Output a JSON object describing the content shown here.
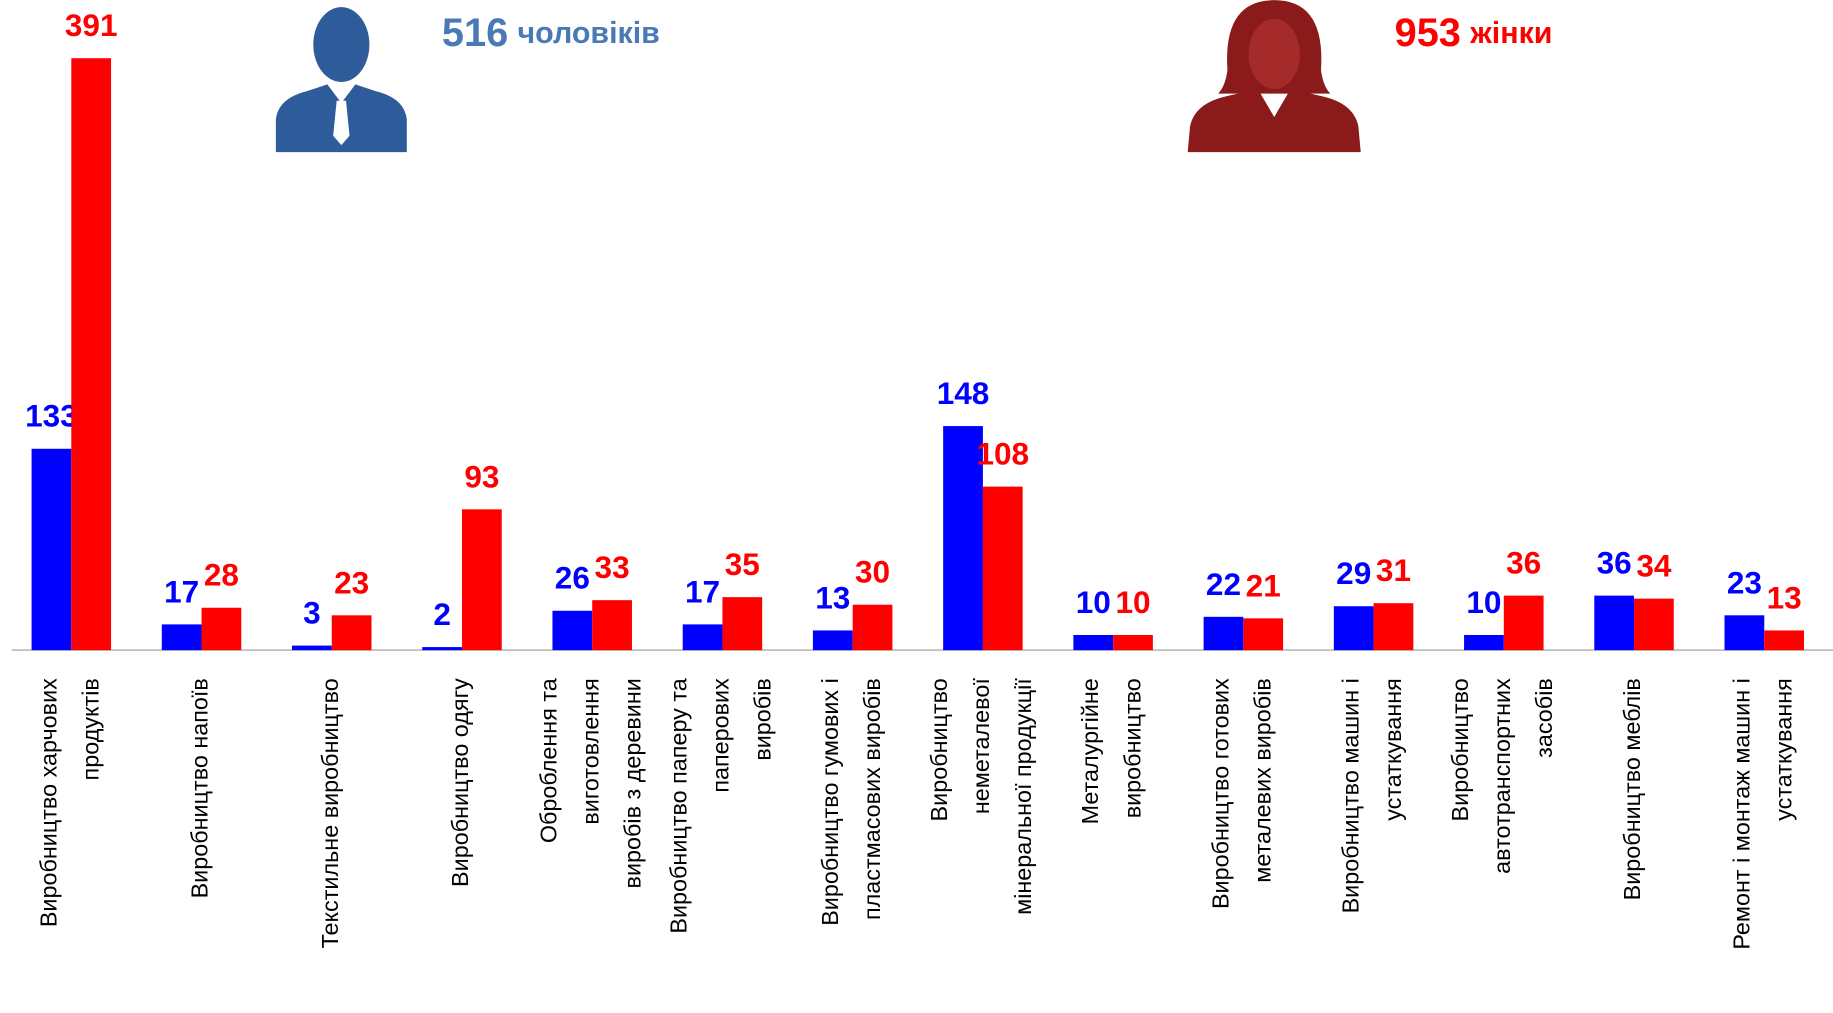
{
  "chart_data": {
    "type": "bar",
    "categories": [
      [
        "Виробництво харчових",
        "продуктів"
      ],
      [
        "Виробництво напоїв"
      ],
      [
        "Текстильне виробництво"
      ],
      [
        "Виробництво одягу"
      ],
      [
        "Оброблення та",
        "виготовлення",
        "виробів з деревини"
      ],
      [
        "Виробництво паперу та",
        "паперових",
        "виробів"
      ],
      [
        "Виробництво гумових і",
        "пластмасових виробів"
      ],
      [
        "Виробництво",
        "неметалевої",
        "мінеральної продукції"
      ],
      [
        "Металургійне",
        "виробництво"
      ],
      [
        "Виробництво готових",
        "металевих виробів"
      ],
      [
        "Виробництво машин і",
        "устаткування"
      ],
      [
        "Виробництво",
        "автотранспортних",
        "засобів"
      ],
      [
        "Виробництво меблів"
      ],
      [
        "Ремонт і монтаж машин і",
        "устаткування"
      ]
    ],
    "series": [
      {
        "name": "чоловіків",
        "total": 516,
        "color": "#0000ff",
        "label_color": "#0000ff",
        "header_color": "#4a7ab5",
        "values": [
          133,
          17,
          3,
          2,
          26,
          17,
          13,
          148,
          10,
          22,
          29,
          10,
          36,
          23
        ]
      },
      {
        "name": "жінки",
        "total": 953,
        "color": "#ff0000",
        "label_color": "#ff0000",
        "header_color": "#ff0000",
        "values": [
          391,
          28,
          23,
          93,
          33,
          35,
          30,
          108,
          10,
          21,
          31,
          36,
          34,
          13
        ]
      }
    ],
    "ylim": [
      0,
      400
    ]
  }
}
